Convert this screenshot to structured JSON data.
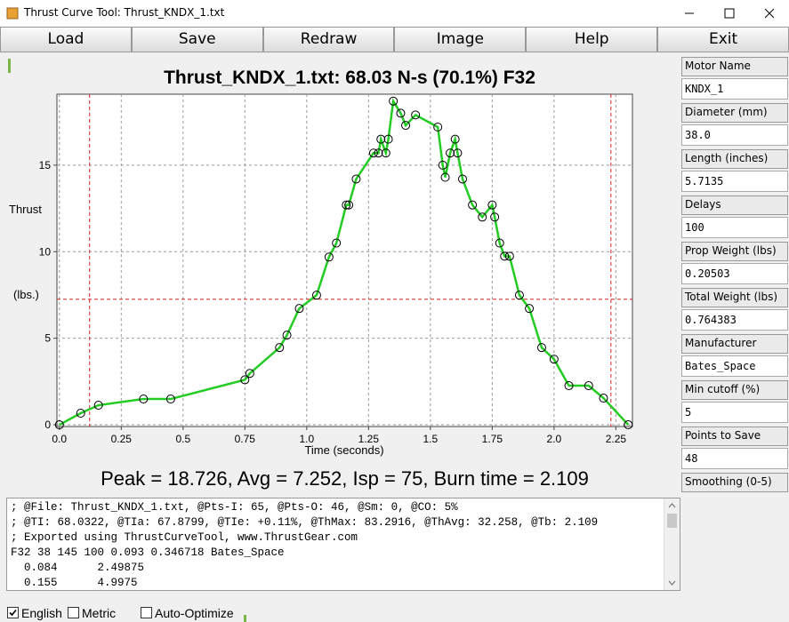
{
  "window": {
    "title": "Thrust Curve Tool: Thrust_KNDX_1.txt"
  },
  "toolbar": [
    "Load",
    "Save",
    "Redraw",
    "Image",
    "Help",
    "Exit"
  ],
  "chart_data": {
    "type": "line",
    "title": "Thrust_KNDX_1.txt:  68.03 N-s (70.1%) F32",
    "x_label": "Time (seconds)",
    "y_label": [
      "Thrust",
      "(lbs.)"
    ],
    "x": [
      0,
      0.086,
      0.158,
      0.34,
      0.45,
      0.75,
      0.77,
      0.89,
      0.92,
      0.97,
      1.04,
      1.09,
      1.12,
      1.16,
      1.17,
      1.2,
      1.27,
      1.29,
      1.3,
      1.32,
      1.33,
      1.35,
      1.38,
      1.4,
      1.44,
      1.53,
      1.55,
      1.56,
      1.58,
      1.6,
      1.61,
      1.63,
      1.67,
      1.71,
      1.75,
      1.76,
      1.78,
      1.8,
      1.82,
      1.86,
      1.9,
      1.95,
      2.0,
      2.06,
      2.14,
      2.2,
      2.3
    ],
    "values": [
      0,
      0.67,
      1.13,
      1.49,
      1.49,
      2.6,
      2.97,
      4.46,
      5.18,
      6.72,
      7.49,
      9.69,
      10.5,
      12.7,
      12.7,
      14.2,
      15.7,
      15.7,
      16.5,
      15.7,
      16.5,
      18.7,
      18.0,
      17.3,
      17.9,
      17.2,
      15.0,
      14.3,
      15.7,
      16.5,
      15.7,
      14.2,
      12.7,
      12.0,
      12.7,
      12.0,
      10.5,
      9.74,
      9.74,
      7.49,
      6.72,
      4.46,
      3.79,
      2.26,
      2.26,
      1.54,
      0
    ],
    "color": "#22cc22",
    "marker_color": "#000000",
    "xlim": [
      -0.01,
      2.317
    ],
    "ylim": [
      -0.1,
      19.1
    ],
    "xticks": [
      {
        "value": 0,
        "label": "0.0"
      },
      0.25,
      0.5,
      0.75,
      {
        "value": 1,
        "label": "1.0"
      },
      1.25,
      1.5,
      1.75,
      {
        "value": 2,
        "label": "2.0"
      },
      2.25
    ],
    "yticks": [
      0,
      5,
      10,
      15
    ],
    "grid": true,
    "reference_lines": {
      "x": [
        0.122,
        2.23
      ],
      "y": [
        7.252
      ],
      "color": "#dd2222"
    }
  },
  "summary": "Peak = 18.726, Avg = 7.252, Isp = 75, Burn time = 2.109",
  "fields": [
    {
      "label": "Motor Name",
      "value": "KNDX_1"
    },
    {
      "label": "Diameter (mm)",
      "value": "38.0"
    },
    {
      "label": "Length (inches)",
      "value": "5.7135"
    },
    {
      "label": "Delays",
      "value": "100"
    },
    {
      "label": "Prop Weight (lbs)",
      "value": "0.20503"
    },
    {
      "label": "Total Weight (lbs)",
      "value": "0.764383"
    },
    {
      "label": "Manufacturer",
      "value": "Bates_Space"
    },
    {
      "label": "Min cutoff (%)",
      "value": "5"
    },
    {
      "label": "Points to Save",
      "value": "48"
    },
    {
      "label": "Smoothing (0-5)"
    }
  ],
  "export_lines": [
    "; @File: Thrust_KNDX_1.txt, @Pts-I: 65, @Pts-O: 46, @Sm: 0, @CO: 5%",
    "; @TI: 68.0322, @TIa: 67.8799, @TIe: +0.11%, @ThMax: 83.2916, @ThAvg: 32.258, @Tb: 2.109",
    "; Exported using ThrustCurveTool, www.ThrustGear.com",
    "F32 38 145 100 0.093 0.346718 Bates_Space",
    "  0.084      2.49875",
    "  0.155      4.9975"
  ],
  "options": [
    {
      "label": "English",
      "checked": true
    },
    {
      "label": "Metric",
      "checked": false
    },
    {
      "label": "Auto-Optimize",
      "checked": false
    }
  ]
}
